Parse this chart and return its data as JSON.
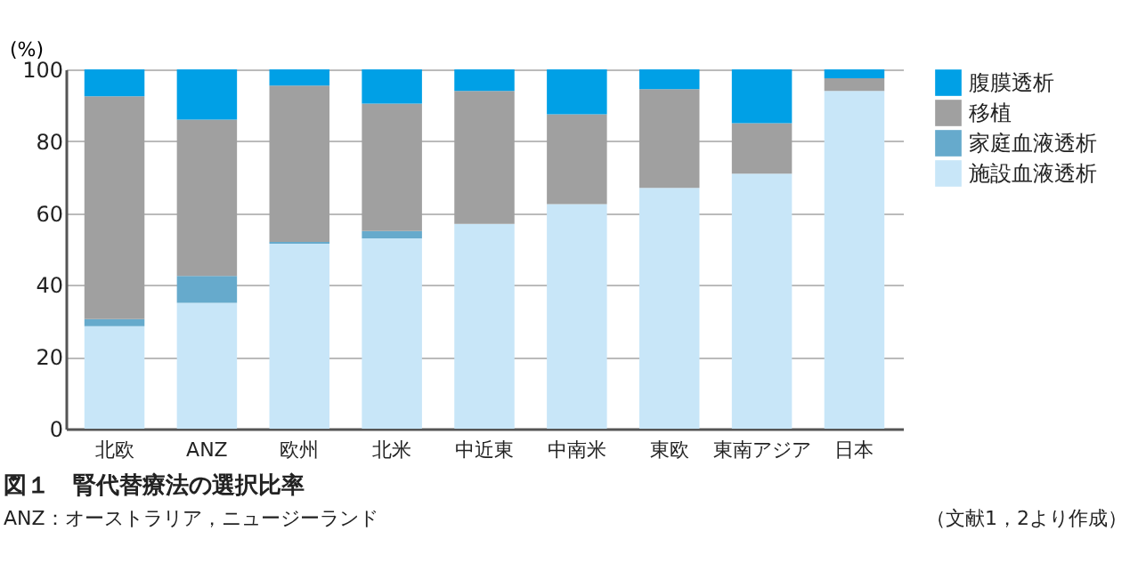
{
  "chart_data": {
    "type": "bar",
    "title": "図１　腎代替療法の選択比率",
    "ylabel": "(%)",
    "annotations": [
      "ANZ：オーストラリア，ニュージーランド",
      "（文献1，2より作成）"
    ],
    "categories": [
      "北欧",
      "ANZ",
      "欧州",
      "北米",
      "中近東",
      "中南米",
      "東欧",
      "東南アジア",
      "日本"
    ],
    "stacked": true,
    "ylim": [
      0,
      100
    ],
    "yticks": [
      0,
      20,
      40,
      60,
      80,
      100
    ],
    "grid": "y",
    "legend": "right",
    "series": [
      {
        "name": "施設血液透析",
        "color": "#c8e6f8",
        "values": [
          28.5,
          35,
          51.5,
          53,
          57,
          62.5,
          67,
          71,
          94
        ]
      },
      {
        "name": "家庭血液透析",
        "color": "#66aacc",
        "values": [
          2,
          7.5,
          0.5,
          2,
          null,
          null,
          null,
          null,
          null
        ]
      },
      {
        "name": "移植",
        "color": "#a0a0a0",
        "values": [
          62,
          43.5,
          43.5,
          35.5,
          37,
          25,
          27.5,
          14,
          3.5
        ]
      },
      {
        "name": "腹膜透析",
        "color": "#00a0e6",
        "values": [
          7.5,
          14,
          4.5,
          9.5,
          6,
          12.5,
          5.5,
          15,
          2.5
        ]
      }
    ]
  }
}
